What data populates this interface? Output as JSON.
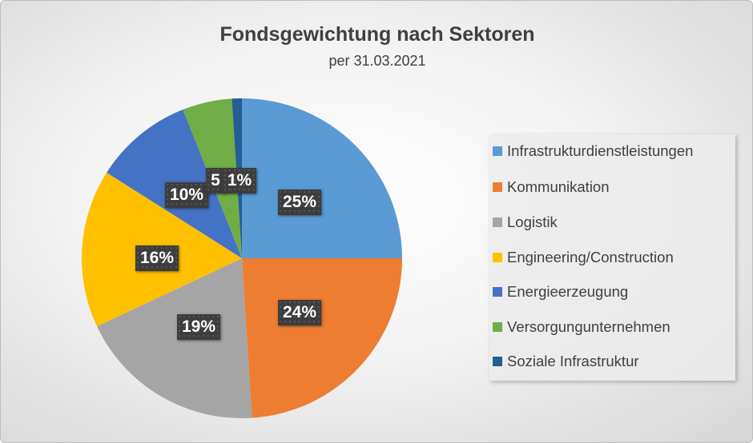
{
  "chart_data": {
    "type": "pie",
    "title": "Fondsgewichtung nach Sektoren",
    "subtitle": "per 31.03.2021",
    "categories": [
      "Infrastrukturdienstleistungen",
      "Kommunikation",
      "Logistik",
      "Engineering/Construction",
      "Energieerzeugung",
      "Versorgungunternehmen",
      "Soziale Infrastruktur"
    ],
    "values": [
      25,
      24,
      19,
      16,
      10,
      5,
      1
    ],
    "data_labels": [
      "25%",
      "24%",
      "19%",
      "16%",
      "10%",
      "5",
      "1%"
    ],
    "colors": [
      "#5b9bd5",
      "#ed7d31",
      "#a5a5a5",
      "#ffc000",
      "#4472c4",
      "#70ad47",
      "#255e91"
    ],
    "start_angle": "12 o'clock, clockwise",
    "legend_position": "right"
  }
}
